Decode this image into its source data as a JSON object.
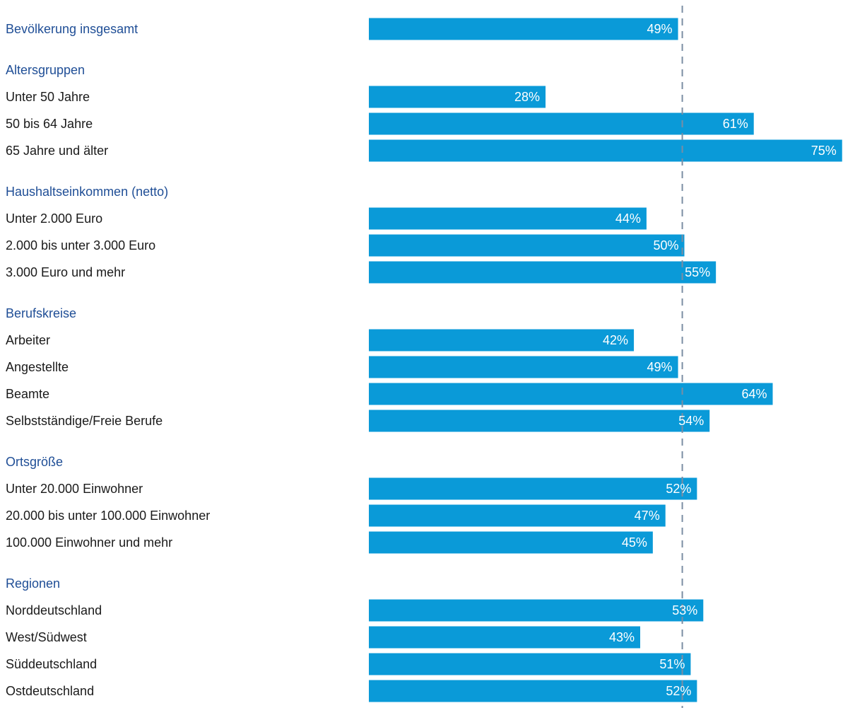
{
  "chart_data": {
    "type": "bar",
    "orientation": "horizontal",
    "value_suffix": "%",
    "xlim": [
      0,
      75
    ],
    "reference_value": 49,
    "colors": {
      "bar": "#0a9ad8",
      "heading": "#1f4e96",
      "label": "#1a1a1a",
      "value_label": "#ffffff",
      "reference_line": "#7a8da3"
    },
    "rows": [
      {
        "kind": "total",
        "label": "Bevölkerung insgesamt",
        "value": 49
      },
      {
        "kind": "heading",
        "label": "Altersgruppen"
      },
      {
        "kind": "bar",
        "label": "Unter 50 Jahre",
        "value": 28
      },
      {
        "kind": "bar",
        "label": "50 bis 64 Jahre",
        "value": 61
      },
      {
        "kind": "bar",
        "label": "65 Jahre und älter",
        "value": 75
      },
      {
        "kind": "heading",
        "label": "Haushaltseinkommen (netto)"
      },
      {
        "kind": "bar",
        "label": "Unter 2.000 Euro",
        "value": 44
      },
      {
        "kind": "bar",
        "label": "2.000 bis unter 3.000 Euro",
        "value": 50
      },
      {
        "kind": "bar",
        "label": "3.000 Euro und mehr",
        "value": 55
      },
      {
        "kind": "heading",
        "label": "Berufskreise"
      },
      {
        "kind": "bar",
        "label": "Arbeiter",
        "value": 42
      },
      {
        "kind": "bar",
        "label": "Angestellte",
        "value": 49
      },
      {
        "kind": "bar",
        "label": "Beamte",
        "value": 64
      },
      {
        "kind": "bar",
        "label": "Selbstständige/Freie Berufe",
        "value": 54
      },
      {
        "kind": "heading",
        "label": "Ortsgröße"
      },
      {
        "kind": "bar",
        "label": "Unter 20.000 Einwohner",
        "value": 52
      },
      {
        "kind": "bar",
        "label": "20.000 bis unter 100.000 Einwohner",
        "value": 47
      },
      {
        "kind": "bar",
        "label": "100.000 Einwohner und mehr",
        "value": 45
      },
      {
        "kind": "heading",
        "label": "Regionen"
      },
      {
        "kind": "bar",
        "label": "Norddeutschland",
        "value": 53
      },
      {
        "kind": "bar",
        "label": "West/Südwest",
        "value": 43
      },
      {
        "kind": "bar",
        "label": "Süddeutschland",
        "value": 51
      },
      {
        "kind": "bar",
        "label": "Ostdeutschland",
        "value": 52
      }
    ]
  }
}
